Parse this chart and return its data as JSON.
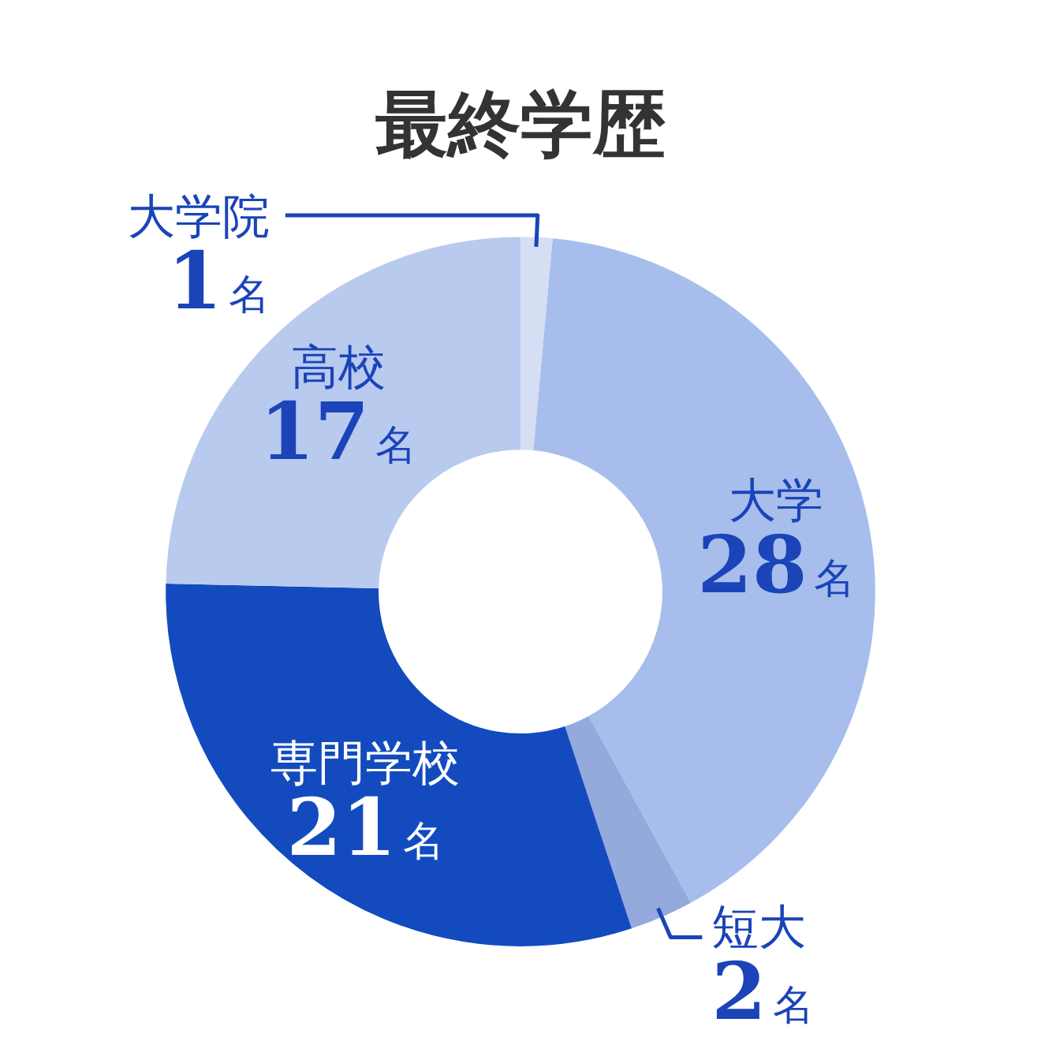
{
  "chart_data": {
    "type": "donut",
    "title": "最終学歴",
    "categories": [
      "大学院",
      "大学",
      "短大",
      "専門学校",
      "高校"
    ],
    "values": [
      1,
      28,
      2,
      21,
      17
    ],
    "value_labels": [
      "1名",
      "28名",
      "2名",
      "21名",
      "17名"
    ],
    "colors": [
      "#d6def4",
      "#a7bdec",
      "#94a9dc",
      "#134bbf",
      "#b9caef"
    ],
    "legend": false
  }
}
